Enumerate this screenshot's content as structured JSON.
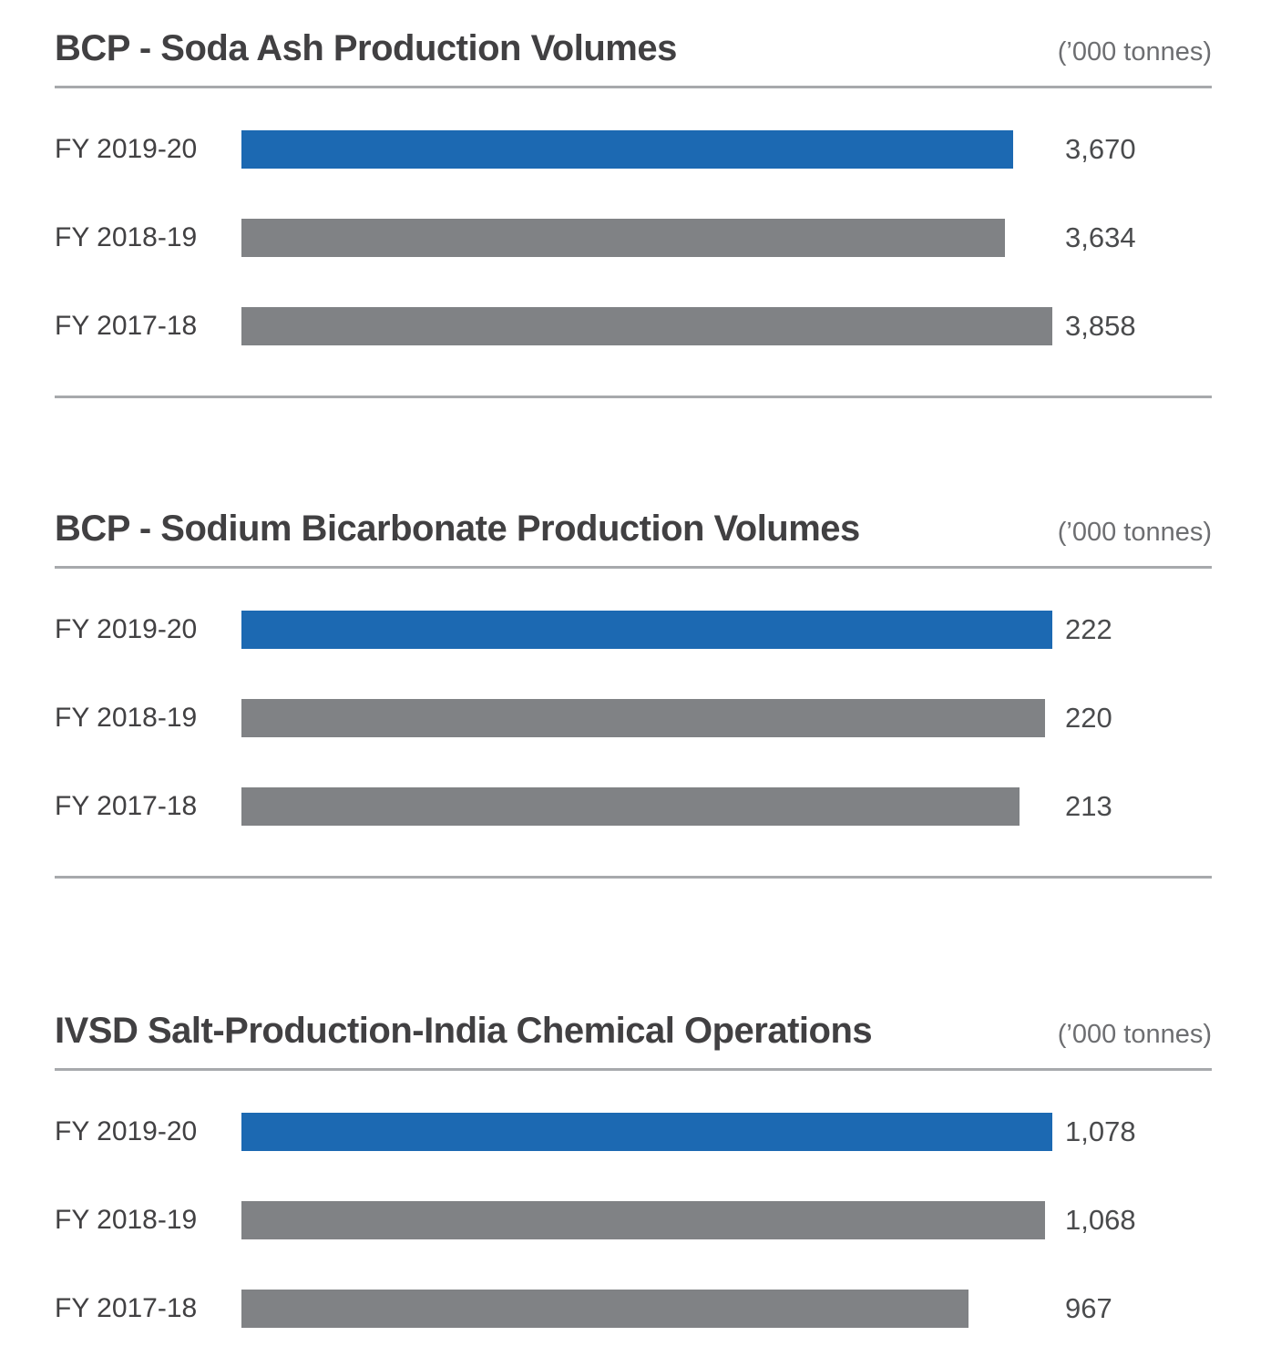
{
  "page": {
    "background": "#ffffff"
  },
  "colors": {
    "accent_blue": "#1C69B2",
    "bar_gray": "#808285",
    "title_text": "#414042",
    "category_text": "#414042",
    "value_text": "#4A4B4D",
    "unit_text": "#6D6E71",
    "divider": "#A7A9AC"
  },
  "chart_data": [
    {
      "type": "bar",
      "orientation": "horizontal",
      "title": "BCP - Soda Ash Production Volumes",
      "unit_label": "(’000 tonnes)",
      "categories": [
        "FY 2019-20",
        "FY 2018-19",
        "FY 2017-18"
      ],
      "values": [
        3670,
        3634,
        3858
      ],
      "value_labels": [
        "3,670",
        "3,634",
        "3,858"
      ],
      "bar_colors": [
        "#1C69B2",
        "#808285",
        "#808285"
      ],
      "xlim": [
        0,
        3858
      ],
      "grid": false,
      "legend": "none",
      "highlight_index": 0
    },
    {
      "type": "bar",
      "orientation": "horizontal",
      "title": "BCP - Sodium Bicarbonate Production Volumes",
      "unit_label": "(’000 tonnes)",
      "categories": [
        "FY 2019-20",
        "FY 2018-19",
        "FY 2017-18"
      ],
      "values": [
        222,
        220,
        213
      ],
      "value_labels": [
        "222",
        "220",
        "213"
      ],
      "bar_colors": [
        "#1C69B2",
        "#808285",
        "#808285"
      ],
      "xlim": [
        0,
        222
      ],
      "grid": false,
      "legend": "none",
      "highlight_index": 0
    },
    {
      "type": "bar",
      "orientation": "horizontal",
      "title": "IVSD Salt-Production-India Chemical Operations",
      "unit_label": "(’000 tonnes)",
      "categories": [
        "FY 2019-20",
        "FY 2018-19",
        "FY 2017-18"
      ],
      "values": [
        1078,
        1068,
        967
      ],
      "value_labels": [
        "1,078",
        "1,068",
        "967"
      ],
      "bar_colors": [
        "#1C69B2",
        "#808285",
        "#808285"
      ],
      "xlim": [
        0,
        1078
      ],
      "grid": false,
      "legend": "none",
      "highlight_index": 0
    }
  ]
}
